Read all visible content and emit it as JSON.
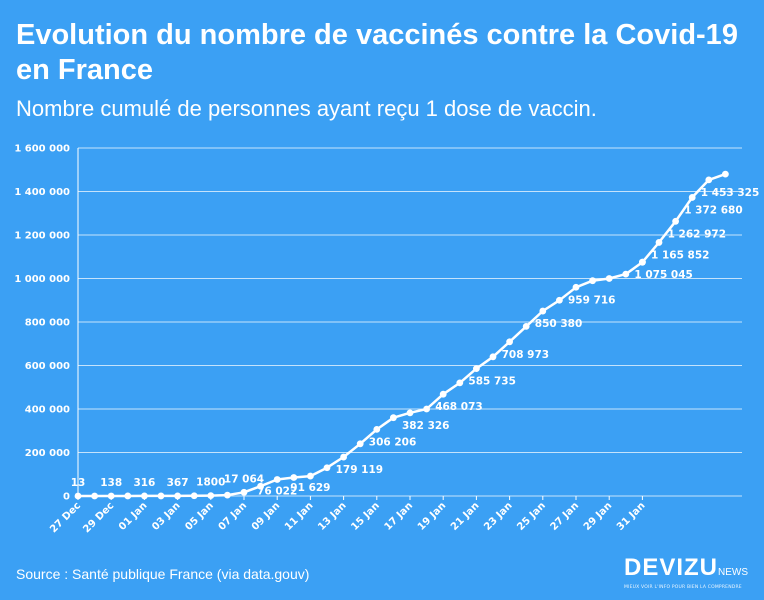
{
  "header": {
    "title": "Evolution du nombre de vaccinés contre la Covid-19 en France",
    "subtitle": "Nombre cumulé de personnes ayant reçu 1 dose de vaccin."
  },
  "footer": {
    "source": "Source : Santé publique France (via data.gouv)",
    "logo_text": "DEVIZU",
    "logo_suffix": "NEWS",
    "logo_tagline": "MIEUX VOIR L'INFO POUR BIEN LA COMPRENDRE"
  },
  "colors": {
    "background": "#3ba0f4",
    "foreground": "#ffffff"
  },
  "chart_data": {
    "type": "line",
    "title": "Evolution du nombre de vaccinés contre la Covid-19 en France",
    "subtitle": "Nombre cumulé de personnes ayant reçu 1 dose de vaccin.",
    "xlabel": "",
    "ylabel": "",
    "ylim": [
      0,
      1600000
    ],
    "yticks": [
      "0",
      "200 000",
      "400 000",
      "600 000",
      "800 000",
      "1 000 000",
      "1 200 000",
      "1 400 000",
      "1 600 000"
    ],
    "xticks": [
      "27 Dec",
      "29 Dec",
      "01 Jan",
      "03 Jan",
      "05 Jan",
      "07 Jan",
      "09 Jan",
      "11 Jan",
      "13 Jan",
      "15 Jan",
      "17 Jan",
      "19 Jan",
      "21 Jan",
      "23 Jan",
      "25 Jan",
      "27 Jan",
      "29 Jan",
      "31 Jan"
    ],
    "grid": true,
    "legend": "none",
    "series": [
      {
        "x": [
          "2020-12-27",
          "2020-12-28",
          "2020-12-29",
          "2020-12-30",
          "2020-12-31",
          "2021-01-01",
          "2021-01-02",
          "2021-01-03",
          "2021-01-04",
          "2021-01-05",
          "2021-01-06",
          "2021-01-07",
          "2021-01-08",
          "2021-01-09",
          "2021-01-10",
          "2021-01-11",
          "2021-01-12",
          "2021-01-13",
          "2021-01-14",
          "2021-01-15",
          "2021-01-16",
          "2021-01-17",
          "2021-01-18",
          "2021-01-19",
          "2021-01-20",
          "2021-01-21",
          "2021-01-22",
          "2021-01-23",
          "2021-01-24",
          "2021-01-25",
          "2021-01-26",
          "2021-01-27",
          "2021-01-28",
          "2021-01-29",
          "2021-01-30"
        ],
        "values": [
          13,
          50,
          138,
          200,
          316,
          340,
          367,
          1000,
          1800,
          4000,
          17064,
          45000,
          76022,
          85000,
          91629,
          130000,
          179119,
          240000,
          306206,
          360000,
          382326,
          400000,
          468073,
          520000,
          585735,
          640000,
          708973,
          780000,
          850380,
          900000,
          959716,
          990000,
          1000000,
          1020000,
          1075045
        ],
        "labels": [
          "13",
          "",
          "138",
          "",
          "316",
          "",
          "367",
          "",
          "1800",
          "",
          "17 064",
          "",
          "76 022",
          "",
          "91 629",
          "",
          "179 119",
          "",
          "306 206",
          "",
          "382 326",
          "",
          "468 073",
          "",
          "585 735",
          "",
          "708 973",
          "",
          "850 380",
          "",
          "959 716",
          "",
          "",
          "",
          "1 075 045"
        ]
      },
      {
        "x": [
          "2021-01-30",
          "2021-01-31",
          "2021-02-01",
          "2021-02-02",
          "2021-02-03",
          "2021-02-04"
        ],
        "values": [
          1075045,
          1165852,
          1262972,
          1372680,
          1453325,
          1480000
        ],
        "labels": [
          "",
          "1 165 852",
          "1 262 972",
          "1 372 680",
          "1 453 325",
          ""
        ]
      }
    ]
  }
}
